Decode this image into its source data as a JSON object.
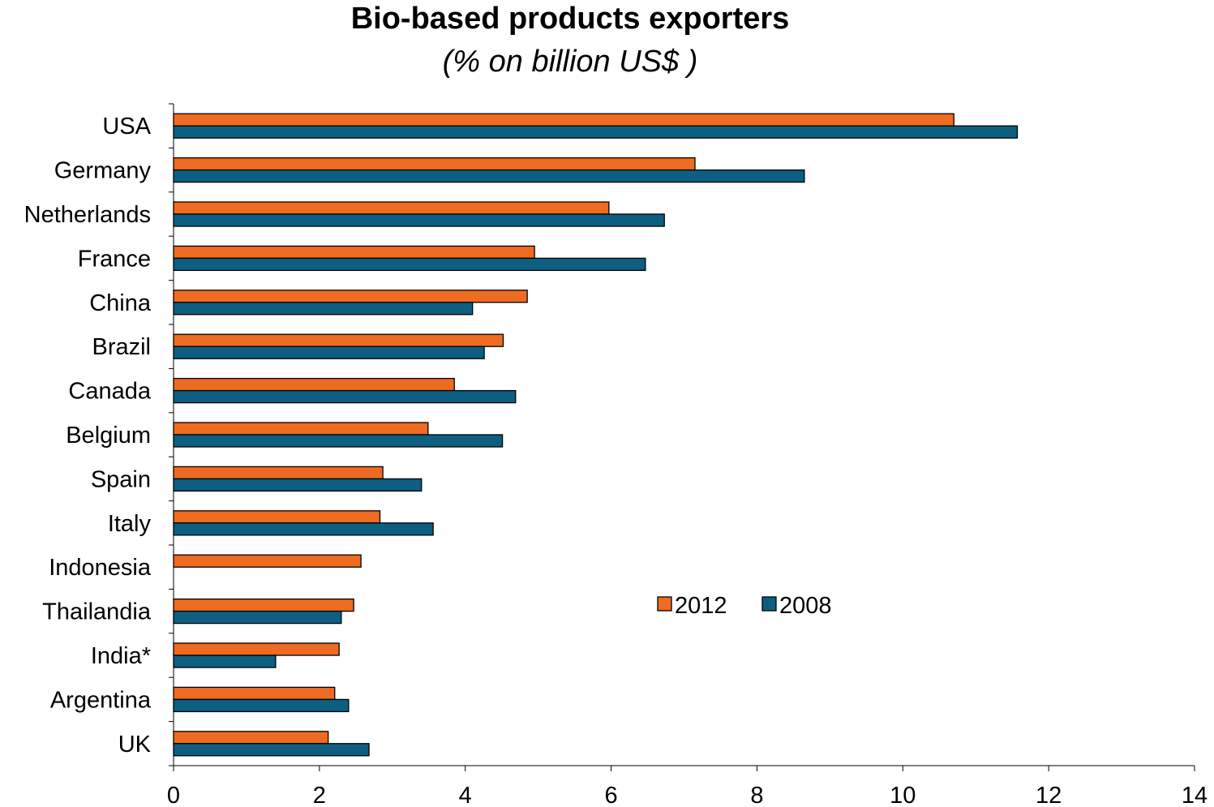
{
  "chart_data": {
    "type": "bar",
    "orientation": "horizontal",
    "title": "Bio-based products exporters",
    "subtitle": "(% on billion US$ )",
    "xlabel": "",
    "ylabel": "",
    "xlim": [
      0,
      14
    ],
    "xticks": [
      0,
      2,
      4,
      6,
      8,
      10,
      12,
      14
    ],
    "grid": false,
    "legend_position": "center-right",
    "categories": [
      "USA",
      "Germany",
      "Netherlands",
      "France",
      "China",
      "Brazil",
      "Canada",
      "Belgium",
      "Spain",
      "Italy",
      "Indonesia",
      "Thailandia",
      "India*",
      "Argentina",
      "UK"
    ],
    "series": [
      {
        "name": "2012",
        "color": "#ee6b21",
        "values": [
          10.7,
          7.15,
          5.97,
          4.95,
          4.85,
          4.52,
          3.85,
          3.49,
          2.87,
          2.83,
          2.57,
          2.47,
          2.27,
          2.21,
          2.12
        ]
      },
      {
        "name": "2008",
        "color": "#0d5f82",
        "values": [
          11.57,
          8.65,
          6.73,
          6.47,
          4.1,
          4.26,
          4.69,
          4.51,
          3.4,
          3.56,
          null,
          2.3,
          1.4,
          2.4,
          2.68
        ]
      }
    ]
  }
}
